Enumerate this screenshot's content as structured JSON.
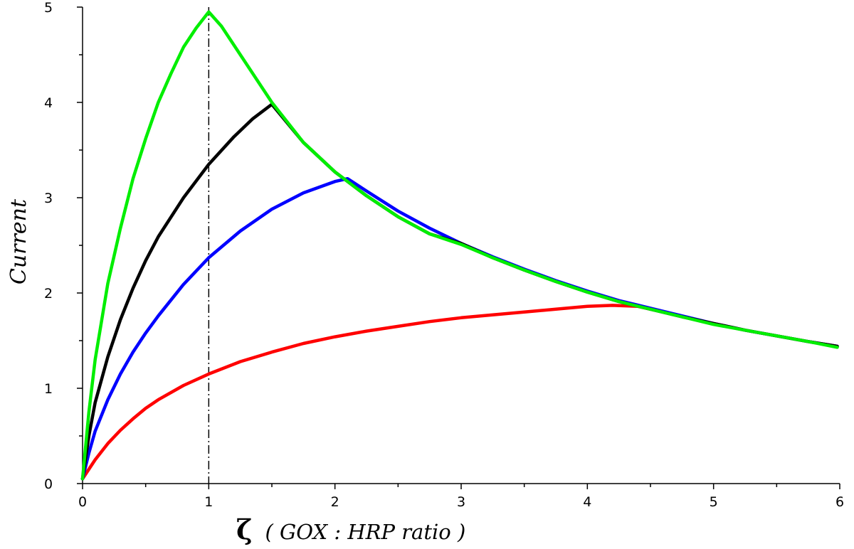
{
  "chart_data": {
    "type": "line",
    "xlabel_symbol": "ζ",
    "xlabel": "( GOX : HRP ratio )",
    "ylabel": "Current",
    "xlim": [
      0,
      6
    ],
    "ylim": [
      0,
      5
    ],
    "x_ticks": [
      "0",
      "1",
      "2",
      "3",
      "4",
      "5",
      "6"
    ],
    "y_ticks": [
      "0",
      "1",
      "2",
      "3",
      "4",
      "5"
    ],
    "grid": false,
    "reference_line": {
      "x": 1,
      "style": "dash-dot",
      "color": "#000000"
    },
    "series": [
      {
        "color": "#ff0000",
        "x": [
          0,
          0.1,
          0.2,
          0.3,
          0.4,
          0.5,
          0.6,
          0.8,
          1.0,
          1.25,
          1.5,
          1.75,
          2.0,
          2.25,
          2.5,
          2.75,
          3.0,
          3.25,
          3.5,
          3.75,
          4.0,
          4.2,
          4.4,
          4.6,
          4.8,
          5.0,
          5.25,
          5.5,
          5.75,
          5.98
        ],
        "y": [
          0.05,
          0.25,
          0.42,
          0.56,
          0.68,
          0.79,
          0.88,
          1.03,
          1.15,
          1.28,
          1.38,
          1.47,
          1.54,
          1.6,
          1.65,
          1.7,
          1.74,
          1.77,
          1.8,
          1.83,
          1.86,
          1.87,
          1.86,
          1.8,
          1.74,
          1.68,
          1.61,
          1.55,
          1.49,
          1.44
        ]
      },
      {
        "color": "#0000ff",
        "x": [
          0,
          0.05,
          0.1,
          0.2,
          0.3,
          0.4,
          0.5,
          0.6,
          0.8,
          1.0,
          1.25,
          1.5,
          1.75,
          2.0,
          2.1,
          2.25,
          2.5,
          2.75,
          3.0,
          3.25,
          3.5,
          3.75,
          4.0,
          4.25,
          4.5,
          4.75,
          5.0,
          5.25,
          5.5,
          5.75,
          5.98
        ],
        "y": [
          0.05,
          0.32,
          0.55,
          0.88,
          1.15,
          1.38,
          1.58,
          1.76,
          2.09,
          2.37,
          2.65,
          2.88,
          3.05,
          3.17,
          3.2,
          3.07,
          2.86,
          2.68,
          2.52,
          2.38,
          2.25,
          2.13,
          2.02,
          1.92,
          1.84,
          1.76,
          1.68,
          1.61,
          1.55,
          1.49,
          1.44
        ]
      },
      {
        "color": "#000000",
        "x": [
          0,
          0.05,
          0.1,
          0.2,
          0.3,
          0.4,
          0.5,
          0.6,
          0.8,
          1.0,
          1.2,
          1.35,
          1.5,
          1.75,
          2.0,
          2.25,
          2.5,
          2.75,
          3.0,
          3.25,
          3.5,
          3.75,
          4.0,
          4.25,
          4.5,
          4.75,
          5.0,
          5.25,
          5.5,
          5.75,
          5.98
        ],
        "y": [
          0.05,
          0.5,
          0.85,
          1.33,
          1.72,
          2.05,
          2.34,
          2.59,
          3.0,
          3.35,
          3.64,
          3.83,
          3.98,
          3.58,
          3.27,
          3.02,
          2.8,
          2.62,
          2.52,
          2.37,
          2.24,
          2.12,
          2.01,
          1.91,
          1.83,
          1.75,
          1.68,
          1.61,
          1.55,
          1.49,
          1.44
        ]
      },
      {
        "color": "#00ee00",
        "x": [
          0,
          0.05,
          0.1,
          0.2,
          0.3,
          0.4,
          0.5,
          0.6,
          0.7,
          0.8,
          0.9,
          1.0,
          1.1,
          1.25,
          1.5,
          1.75,
          2.0,
          2.25,
          2.5,
          2.75,
          3.0,
          3.25,
          3.5,
          3.75,
          4.0,
          4.25,
          4.5,
          4.75,
          5.0,
          5.25,
          5.5,
          5.75,
          5.98
        ],
        "y": [
          0.05,
          0.75,
          1.3,
          2.1,
          2.68,
          3.2,
          3.62,
          4.0,
          4.3,
          4.58,
          4.78,
          4.95,
          4.8,
          4.5,
          4.0,
          3.58,
          3.27,
          3.02,
          2.8,
          2.62,
          2.51,
          2.37,
          2.24,
          2.12,
          2.01,
          1.91,
          1.83,
          1.75,
          1.67,
          1.61,
          1.55,
          1.49,
          1.43
        ]
      }
    ]
  }
}
